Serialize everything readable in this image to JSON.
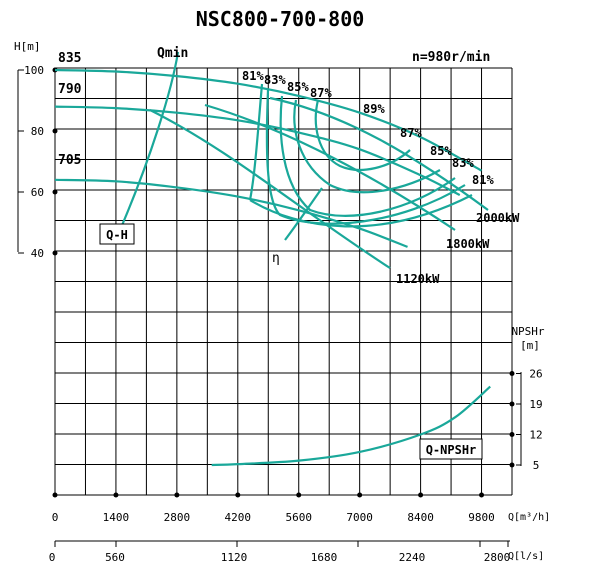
{
  "chart_data": {
    "type": "line",
    "title": "NSC800-700-800",
    "speed_label": "n=980r/min",
    "y_axis_head": {
      "unit_label": "H[m]",
      "ticks": [
        40,
        60,
        80,
        100
      ]
    },
    "y_axis_npsh": {
      "unit_label_top": "NPSHr",
      "unit_label_bottom": "[m]",
      "ticks": [
        5,
        12,
        19,
        26
      ]
    },
    "x_axis_m3h": {
      "unit_label": "Q[m³/h]",
      "ticks": [
        0,
        1400,
        2800,
        4200,
        5600,
        7000,
        8400,
        9800
      ]
    },
    "x_axis_ls": {
      "unit_label": "Q[l/s]",
      "ticks": [
        0,
        560,
        1120,
        1680,
        2240,
        2800
      ]
    },
    "impeller_diameters": [
      "835",
      "790",
      "705"
    ],
    "curve_labels": {
      "qh": "Q-H",
      "qmin": "Qmin",
      "eta": "η",
      "npsh": "Q-NPSHr"
    },
    "efficiency_labels": [
      "81%",
      "83%",
      "85%",
      "87%",
      "89%",
      "87%",
      "85%",
      "83%",
      "81%"
    ],
    "power_labels": [
      "2000kW",
      "1800kW",
      "1120kW"
    ],
    "series": [
      {
        "name": "835",
        "x": [
          0,
          1400,
          2800,
          4200,
          5600,
          7000,
          8400,
          9800
        ],
        "y": [
          100,
          99.5,
          98,
          95.5,
          91.5,
          86,
          78,
          67
        ]
      },
      {
        "name": "790",
        "x": [
          0,
          1400,
          2800,
          4200,
          5600,
          7000,
          8400,
          9300
        ],
        "y": [
          88,
          87.5,
          86,
          83.5,
          79.5,
          74,
          65.5,
          59
        ]
      },
      {
        "name": "705",
        "x": [
          0,
          1400,
          2800,
          4200,
          5600,
          7000,
          8100
        ],
        "y": [
          64,
          63.5,
          61.5,
          58.5,
          54,
          48,
          42
        ]
      },
      {
        "name": "Q-NPSHr",
        "x": [
          3600,
          4200,
          5600,
          7000,
          8400,
          9200,
          10000
        ],
        "y": [
          5,
          5.2,
          6,
          8,
          12,
          16,
          23
        ]
      }
    ]
  }
}
